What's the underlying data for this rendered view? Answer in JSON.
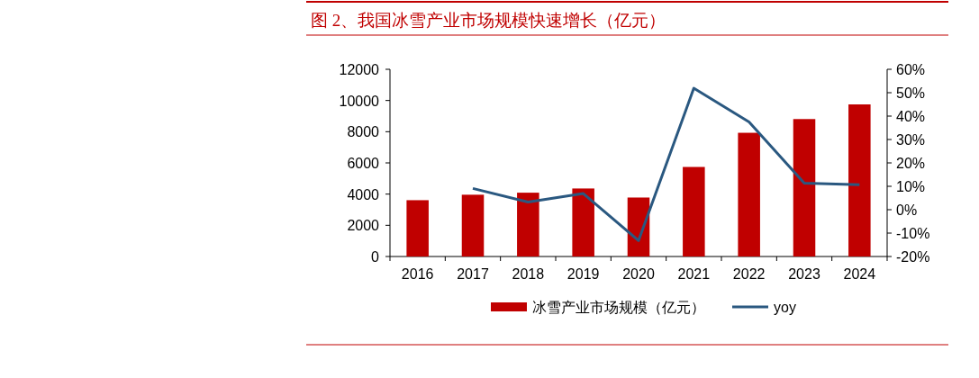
{
  "chart_data": {
    "type": "bar",
    "title": "图 2、我国冰雪产业市场规模快速增长（亿元）",
    "categories": [
      "2016",
      "2017",
      "2018",
      "2019",
      "2020",
      "2021",
      "2022",
      "2023",
      "2024"
    ],
    "series": [
      {
        "name": "冰雪产业市场规模（亿元）",
        "color": "#c00000",
        "values": [
          3610,
          3960,
          4090,
          4360,
          3780,
          5740,
          7930,
          8810,
          9750
        ]
      },
      {
        "name": "yoy",
        "type": "line",
        "axis": "y2",
        "color": "#2a5880",
        "values": [
          null,
          9.1,
          3.3,
          6.9,
          -13.2,
          51.9,
          37.5,
          11.3,
          10.7
        ]
      }
    ],
    "ylim": [
      0,
      12000
    ],
    "yticks": [
      0,
      2000,
      4000,
      6000,
      8000,
      10000,
      12000
    ],
    "y2lim": [
      -20,
      60
    ],
    "y2ticks": [
      {
        "value": -20,
        "label": "-20%"
      },
      {
        "value": -10,
        "label": "-10%"
      },
      {
        "value": 0,
        "label": "0%"
      },
      {
        "value": 10,
        "label": "10%"
      },
      {
        "value": 20,
        "label": "20%"
      },
      {
        "value": 30,
        "label": "30%"
      },
      {
        "value": 40,
        "label": "40%"
      },
      {
        "value": 50,
        "label": "50%"
      },
      {
        "value": 60,
        "label": "60%"
      }
    ],
    "legend": "bottom",
    "grid": false
  }
}
